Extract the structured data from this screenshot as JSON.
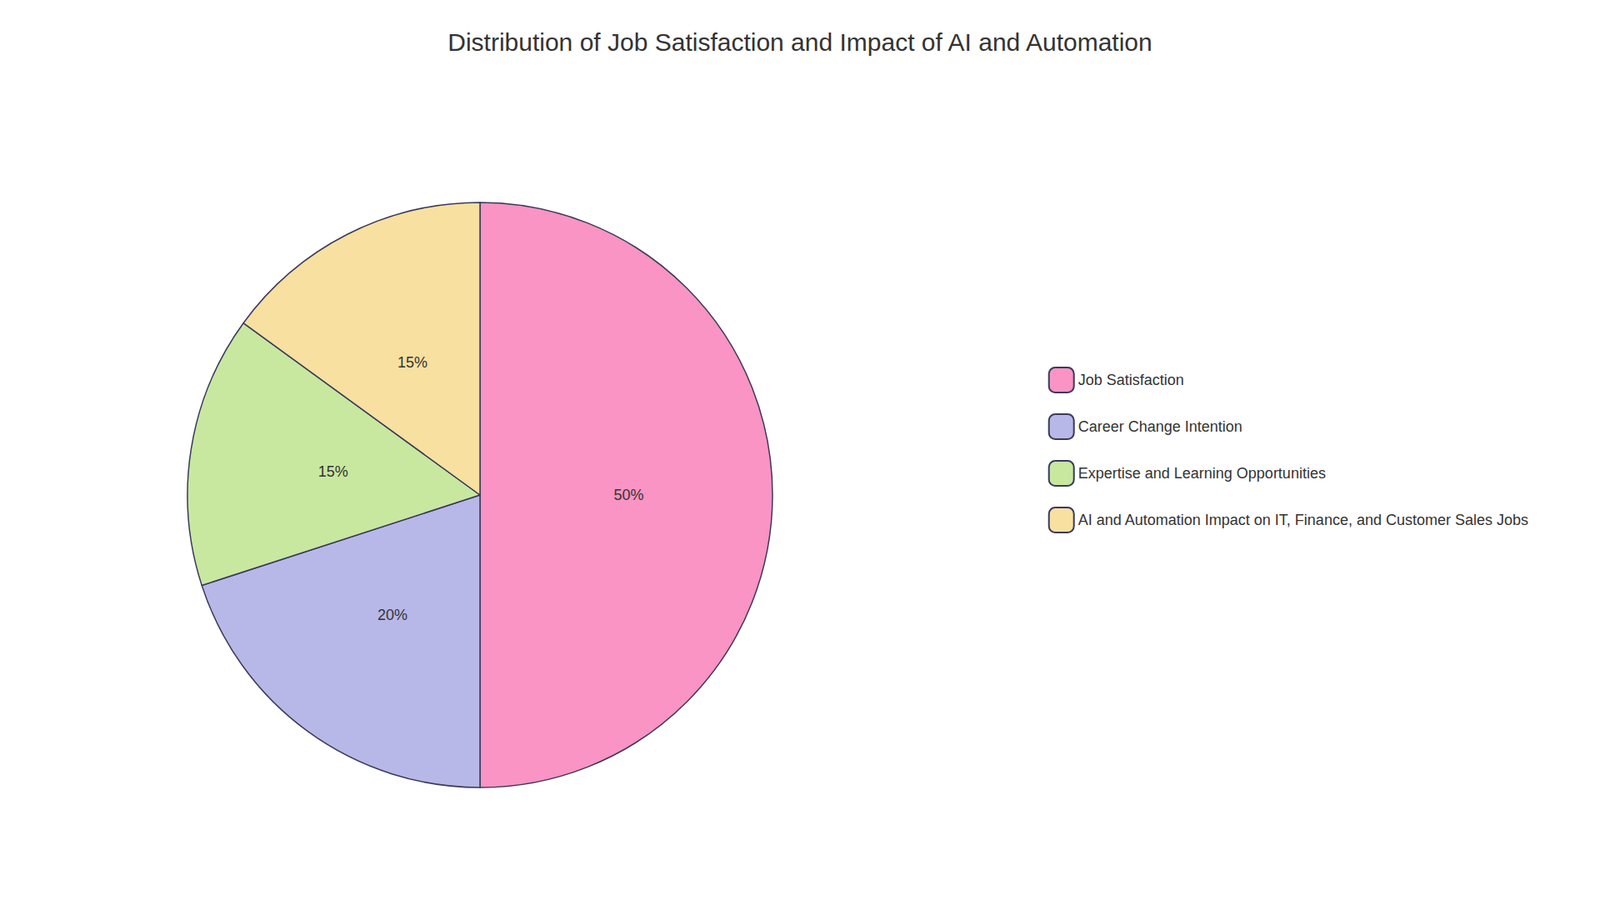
{
  "chart_data": {
    "type": "pie",
    "title": "Distribution of Job Satisfaction and Impact of AI and Automation",
    "categories": [
      "Job Satisfaction",
      "Career Change Intention",
      "Expertise and Learning Opportunities",
      "AI and Automation Impact on IT, Finance, and Customer Sales Jobs"
    ],
    "values": [
      50,
      20,
      15,
      15
    ],
    "value_labels": [
      "50%",
      "20%",
      "15%",
      "15%"
    ],
    "colors": [
      "#F994C4",
      "#B8B8E8",
      "#C8E8A0",
      "#F8E0A0"
    ],
    "legend": "right",
    "data_labels": true
  }
}
